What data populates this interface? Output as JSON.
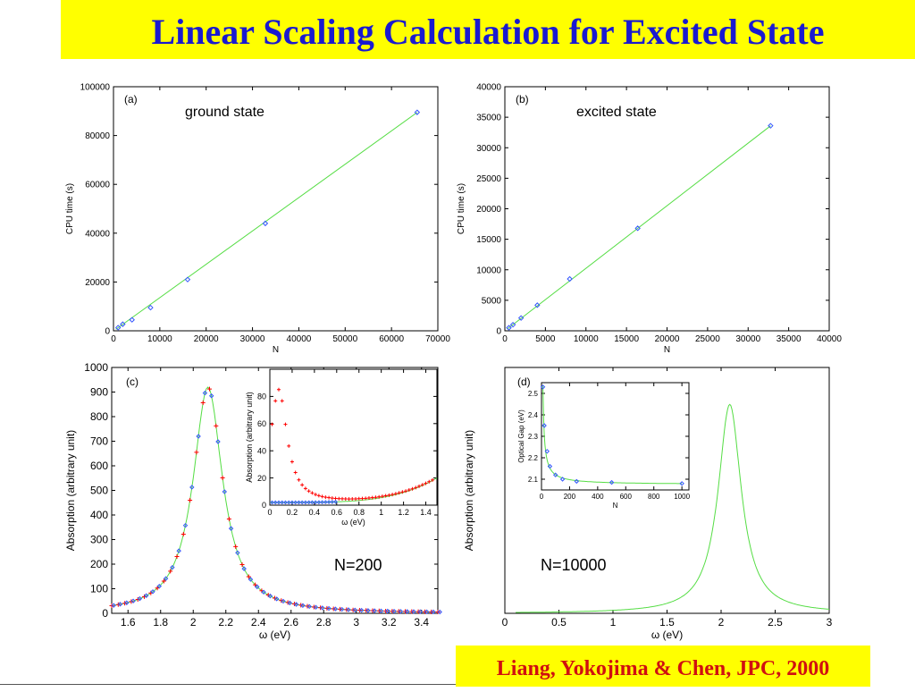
{
  "title": "Linear Scaling Calculation for Excited State",
  "citation": "Liang, Yokojima & Chen, JPC, 2000",
  "colors": {
    "fit_line": "#55dd44",
    "marker_blue": "#3355ff",
    "marker_red": "#ff0000",
    "title_bg": "#ffff00",
    "title_text": "#1a1ad0",
    "citation_text": "#d01010"
  },
  "chart_data": [
    {
      "id": "a",
      "type": "scatter",
      "panel_label": "(a)",
      "annotation": "ground state",
      "xlabel": "N",
      "ylabel": "CPU time (s)",
      "xlim": [
        0,
        70000
      ],
      "ylim": [
        0,
        100000
      ],
      "xticks": [
        0,
        10000,
        20000,
        30000,
        40000,
        50000,
        60000,
        70000
      ],
      "yticks": [
        0,
        20000,
        40000,
        60000,
        80000,
        100000
      ],
      "series": [
        {
          "kind": "points",
          "x": [
            1000,
            2000,
            4000,
            8000,
            16000,
            32768,
            65536
          ],
          "y": [
            1300,
            2700,
            4500,
            9500,
            21000,
            44000,
            89500
          ]
        },
        {
          "kind": "fit",
          "x": [
            500,
            65536
          ],
          "y": [
            600,
            89500
          ]
        }
      ]
    },
    {
      "id": "b",
      "type": "scatter",
      "panel_label": "(b)",
      "annotation": "excited state",
      "xlabel": "N",
      "ylabel": "CPU time (s)",
      "xlim": [
        0,
        40000
      ],
      "ylim": [
        0,
        40000
      ],
      "xticks": [
        0,
        5000,
        10000,
        15000,
        20000,
        25000,
        30000,
        35000,
        40000
      ],
      "yticks": [
        0,
        5000,
        10000,
        15000,
        20000,
        25000,
        30000,
        35000,
        40000
      ],
      "series": [
        {
          "kind": "points",
          "x": [
            500,
            1000,
            2000,
            4000,
            8000,
            16384,
            32768
          ],
          "y": [
            500,
            1000,
            2100,
            4200,
            8500,
            16800,
            33600
          ]
        },
        {
          "kind": "fit",
          "x": [
            300,
            32768
          ],
          "y": [
            300,
            33600
          ]
        }
      ]
    },
    {
      "id": "c",
      "type": "line",
      "panel_label": "(c)",
      "annotation": "N=200",
      "xlabel": "ω (eV)",
      "ylabel": "Absorption (arbitrary unit)",
      "xlim": [
        1.5,
        3.5
      ],
      "ylim": [
        0,
        1000
      ],
      "xticks": [
        1.6,
        1.8,
        2,
        2.2,
        2.4,
        2.6,
        2.8,
        3,
        3.2,
        3.4
      ],
      "yticks": [
        0,
        100,
        200,
        300,
        400,
        500,
        600,
        700,
        800,
        900,
        1000
      ],
      "peak": {
        "x": 2.09,
        "y": 920
      },
      "inset": {
        "xlabel": "ω (eV)",
        "ylabel": "Absorption (arbitrary unit)",
        "xlim": [
          0,
          1.5
        ],
        "ylim": [
          0,
          100
        ],
        "xticks": [
          0,
          0.2,
          0.4,
          0.6,
          0.8,
          1,
          1.2,
          1.4
        ],
        "yticks": [
          0,
          20,
          40,
          60,
          80
        ],
        "red_peak": {
          "x": 0.08,
          "y": 85
        }
      }
    },
    {
      "id": "d",
      "type": "line",
      "panel_label": "(d)",
      "annotation": "N=10000",
      "xlabel": "ω (eV)",
      "ylabel": "Absorption (arbitrary unit)",
      "xlim": [
        0,
        3
      ],
      "ylim": [
        0,
        1000
      ],
      "xticks": [
        0,
        0.5,
        1,
        1.5,
        2,
        2.5,
        3
      ],
      "peak": {
        "x": 2.08,
        "y": 850
      },
      "inset": {
        "xlabel": "N",
        "ylabel": "Optical Gap (eV)",
        "xlim": [
          0,
          1050
        ],
        "ylim": [
          2.05,
          2.55
        ],
        "xticks": [
          0,
          200,
          400,
          600,
          800,
          1000
        ],
        "yticks": [
          2.1,
          2.2,
          2.3,
          2.4,
          2.5
        ],
        "x": [
          10,
          20,
          40,
          60,
          100,
          150,
          250,
          500,
          1000
        ],
        "y": [
          2.53,
          2.35,
          2.23,
          2.16,
          2.12,
          2.1,
          2.09,
          2.085,
          2.08
        ]
      }
    }
  ]
}
